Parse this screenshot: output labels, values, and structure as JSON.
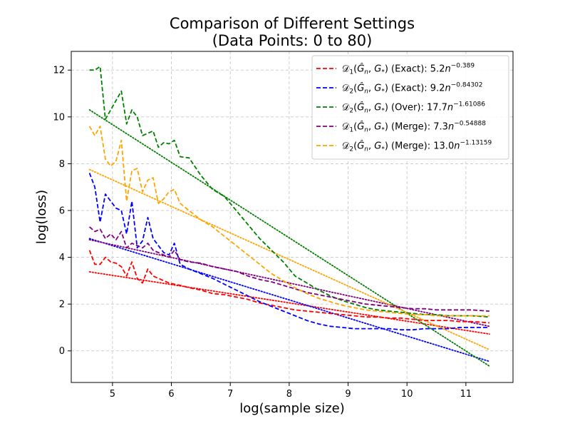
{
  "chart_data": {
    "type": "line",
    "title_line1": "Comparison of Different Settings",
    "title_line2": "(Data Points: 0 to 80)",
    "xlabel": "log(sample size)",
    "ylabel": "log(loss)",
    "xlim": [
      4.3,
      11.8
    ],
    "ylim": [
      -1.35,
      12.8
    ],
    "xticks": [
      5,
      6,
      7,
      8,
      9,
      10,
      11
    ],
    "yticks": [
      0,
      2,
      4,
      6,
      8,
      10,
      12
    ],
    "grid": true,
    "legend_position": "top-right",
    "series": [
      {
        "key": "d1_exact",
        "legend": {
          "metric": "D1",
          "setting": "Exact",
          "coef": "5.2",
          "exponent": "−0.389"
        },
        "color": "#ff0000",
        "fit": [
          3.38,
          0.72
        ],
        "x": [
          4.61,
          4.7,
          4.79,
          4.88,
          4.97,
          5.06,
          5.15,
          5.24,
          5.33,
          5.42,
          5.51,
          5.6,
          5.69,
          5.78,
          5.87,
          5.96,
          6.05,
          6.15,
          6.3,
          6.5,
          6.7,
          6.9,
          7.1,
          7.3,
          7.5,
          7.7,
          7.9,
          8.1,
          8.3,
          8.5,
          8.7,
          8.9,
          9.1,
          9.3,
          9.5,
          9.7,
          9.9,
          10.1,
          10.3,
          10.5,
          10.7,
          10.9,
          11.1,
          11.4
        ],
        "y": [
          4.3,
          3.7,
          3.7,
          4.0,
          3.8,
          3.75,
          3.6,
          3.2,
          3.8,
          3.1,
          2.9,
          3.5,
          3.2,
          3.1,
          3.0,
          2.9,
          2.85,
          2.8,
          2.7,
          2.6,
          2.45,
          2.4,
          2.3,
          2.2,
          2.05,
          1.95,
          1.85,
          1.75,
          1.7,
          1.65,
          1.6,
          1.55,
          1.5,
          1.45,
          1.45,
          1.4,
          1.4,
          1.35,
          1.3,
          1.3,
          1.3,
          1.25,
          1.25,
          1.2
        ]
      },
      {
        "key": "d2_exact",
        "legend": {
          "metric": "D2",
          "setting": "Exact",
          "coef": "9.2",
          "exponent": "−0.84302"
        },
        "color": "#0000ff",
        "fit": [
          4.8,
          -0.45
        ],
        "x": [
          4.61,
          4.7,
          4.79,
          4.88,
          4.97,
          5.06,
          5.15,
          5.24,
          5.33,
          5.42,
          5.51,
          5.6,
          5.69,
          5.78,
          5.87,
          5.96,
          6.05,
          6.15,
          6.3,
          6.5,
          6.7,
          6.9,
          7.1,
          7.3,
          7.5,
          7.7,
          7.9,
          8.1,
          8.3,
          8.5,
          8.7,
          8.9,
          9.1,
          9.3,
          9.5,
          9.7,
          9.9,
          10.1,
          10.3,
          10.5,
          10.7,
          10.9,
          11.1,
          11.4
        ],
        "y": [
          7.6,
          7.0,
          5.5,
          6.7,
          6.4,
          6.1,
          6.0,
          5.0,
          6.4,
          4.4,
          4.7,
          5.7,
          4.8,
          4.5,
          4.2,
          4.1,
          4.6,
          3.7,
          3.5,
          3.3,
          3.1,
          2.85,
          2.6,
          2.35,
          2.1,
          1.9,
          1.7,
          1.5,
          1.3,
          1.15,
          1.05,
          1.0,
          0.95,
          0.95,
          0.95,
          0.95,
          0.9,
          0.9,
          0.95,
          0.95,
          0.95,
          1.0,
          1.0,
          1.0
        ]
      },
      {
        "key": "d2_over",
        "legend": {
          "metric": "D2",
          "setting": "Over",
          "coef": "17.7",
          "exponent": "−1.61086"
        },
        "color": "#008000",
        "fit": [
          10.3,
          -0.65
        ],
        "x": [
          4.61,
          4.7,
          4.79,
          4.88,
          4.97,
          5.06,
          5.15,
          5.24,
          5.33,
          5.42,
          5.51,
          5.6,
          5.69,
          5.78,
          5.87,
          5.96,
          6.05,
          6.15,
          6.3,
          6.5,
          6.7,
          6.9,
          7.1,
          7.3,
          7.5,
          7.7,
          7.9,
          8.1,
          8.3,
          8.5,
          8.7,
          8.9,
          9.1,
          9.3,
          9.5,
          9.7,
          9.9,
          10.1,
          10.3,
          10.5,
          10.7,
          10.9,
          11.1,
          11.4
        ],
        "y": [
          12.0,
          12.0,
          12.15,
          9.9,
          10.3,
          10.7,
          11.1,
          9.7,
          10.3,
          10.0,
          9.2,
          9.3,
          9.4,
          8.7,
          8.9,
          8.85,
          9.0,
          8.3,
          8.25,
          7.5,
          6.9,
          6.6,
          6.0,
          5.4,
          4.8,
          4.3,
          3.8,
          3.2,
          2.9,
          2.6,
          2.35,
          2.15,
          2.0,
          1.85,
          1.75,
          1.7,
          1.65,
          1.6,
          1.55,
          1.55,
          1.5,
          1.5,
          1.5,
          1.45
        ]
      },
      {
        "key": "d1_merge",
        "legend": {
          "metric": "D1",
          "setting": "Merge",
          "coef": "7.3",
          "exponent": "−0.54888"
        },
        "color": "#800080",
        "fit": [
          4.75,
          1.05
        ],
        "x": [
          4.61,
          4.7,
          4.79,
          4.88,
          4.97,
          5.06,
          5.15,
          5.24,
          5.33,
          5.42,
          5.51,
          5.6,
          5.69,
          5.78,
          5.87,
          5.96,
          6.05,
          6.15,
          6.3,
          6.5,
          6.7,
          6.9,
          7.1,
          7.3,
          7.5,
          7.7,
          7.9,
          8.1,
          8.3,
          8.5,
          8.7,
          8.9,
          9.1,
          9.3,
          9.5,
          9.7,
          9.9,
          10.1,
          10.3,
          10.5,
          10.7,
          10.9,
          11.1,
          11.4
        ],
        "y": [
          5.3,
          5.1,
          5.2,
          4.8,
          5.0,
          4.75,
          5.1,
          4.4,
          4.6,
          4.5,
          4.4,
          4.6,
          4.3,
          4.2,
          4.1,
          4.0,
          4.3,
          3.9,
          3.8,
          3.75,
          3.6,
          3.5,
          3.4,
          3.2,
          3.05,
          2.95,
          2.8,
          2.65,
          2.5,
          2.4,
          2.3,
          2.2,
          2.1,
          2.0,
          1.95,
          1.9,
          1.85,
          1.8,
          1.8,
          1.75,
          1.75,
          1.75,
          1.75,
          1.7
        ]
      },
      {
        "key": "d2_merge",
        "legend": {
          "metric": "D2",
          "setting": "Merge",
          "coef": "13.0",
          "exponent": "−1.13159"
        },
        "color": "#ffa500",
        "fit": [
          7.75,
          0.05
        ],
        "x": [
          4.61,
          4.7,
          4.79,
          4.88,
          4.97,
          5.06,
          5.15,
          5.24,
          5.33,
          5.42,
          5.51,
          5.6,
          5.69,
          5.78,
          5.87,
          5.96,
          6.05,
          6.15,
          6.3,
          6.5,
          6.7,
          6.9,
          7.1,
          7.3,
          7.5,
          7.7,
          7.9,
          8.1,
          8.3,
          8.5,
          8.7,
          8.9,
          9.1,
          9.3,
          9.5,
          9.7,
          9.9,
          10.1,
          10.3,
          10.5,
          10.7,
          10.9,
          11.1,
          11.4
        ],
        "y": [
          9.6,
          9.2,
          9.6,
          8.2,
          7.9,
          8.1,
          9.0,
          6.4,
          7.7,
          7.8,
          6.8,
          7.3,
          7.4,
          6.3,
          6.5,
          6.8,
          6.9,
          6.3,
          6.0,
          5.6,
          5.3,
          4.9,
          4.5,
          4.1,
          3.7,
          3.3,
          3.0,
          2.7,
          2.45,
          2.25,
          2.1,
          1.95,
          1.85,
          1.75,
          1.7,
          1.65,
          1.6,
          1.55,
          1.55,
          1.5,
          1.5,
          1.5,
          1.5,
          1.5
        ]
      }
    ]
  }
}
